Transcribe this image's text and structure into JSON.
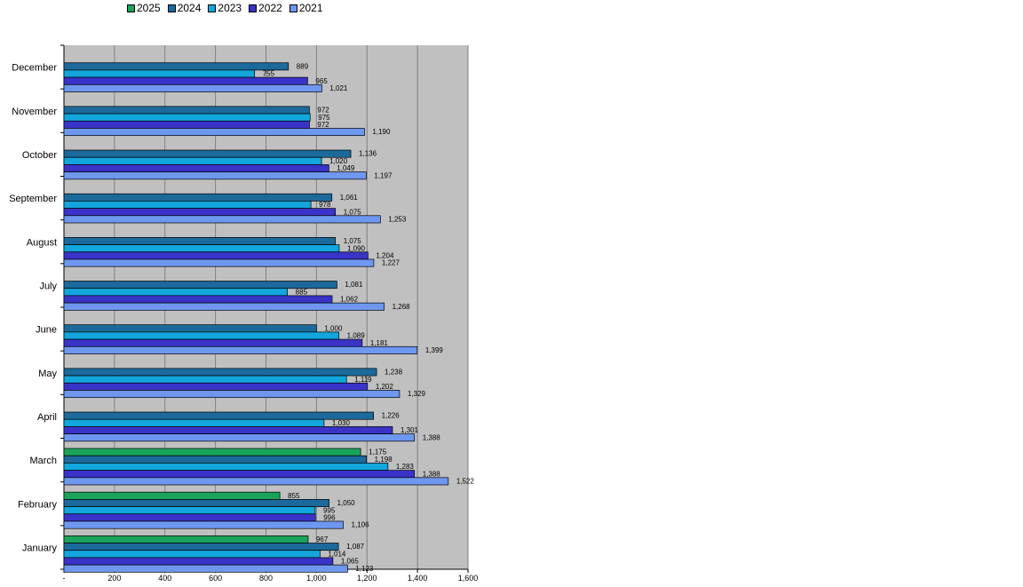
{
  "chart_data": {
    "type": "bar",
    "orientation": "horizontal",
    "categories": [
      "December",
      "November",
      "October",
      "September",
      "August",
      "July",
      "June",
      "May",
      "April",
      "March",
      "February",
      "January"
    ],
    "series": [
      {
        "name": "2024",
        "color": "#1b6a9b",
        "values": [
          889,
          972,
          1136,
          1061,
          1075,
          1081,
          1000,
          1238,
          1226,
          1198,
          1050,
          1087
        ],
        "labels": [
          "889",
          "972",
          "1,136",
          "1,061",
          "1,075",
          "1,081",
          "1,000",
          "1,238",
          "1,226",
          "1,198",
          "1,050",
          "1,087"
        ]
      },
      {
        "name": "2023",
        "color": "#12a6dd",
        "values": [
          755,
          975,
          1020,
          978,
          1090,
          885,
          1089,
          1119,
          1030,
          1283,
          995,
          1014
        ],
        "labels": [
          "755",
          "975",
          "1,020",
          "978",
          "1,090",
          "885",
          "1,089",
          "1,119",
          "1,030",
          "1,283",
          "995",
          "1,014"
        ]
      },
      {
        "name": "2022",
        "color": "#3a33c8",
        "values": [
          965,
          972,
          1049,
          1075,
          1204,
          1062,
          1181,
          1202,
          1301,
          1388,
          996,
          1065
        ],
        "labels": [
          "965",
          "972",
          "1,049",
          "1,075",
          "1,204",
          "1,062",
          "1,181",
          "1,202",
          "1,301",
          "1,388",
          "996",
          "1,065"
        ]
      },
      {
        "name": "2021",
        "color": "#6e97ef",
        "values": [
          1021,
          1190,
          1197,
          1253,
          1227,
          1268,
          1399,
          1329,
          1388,
          1522,
          1106,
          1123
        ],
        "labels": [
          "1,021",
          "1,190",
          "1,197",
          "1,253",
          "1,227",
          "1,268",
          "1,399",
          "1,329",
          "1,388",
          "1,522",
          "1,106",
          "1,123"
        ]
      },
      {
        "name": "2025",
        "color": "#1aa35a",
        "values": [
          null,
          null,
          null,
          null,
          null,
          null,
          null,
          null,
          null,
          1175,
          855,
          967
        ],
        "labels": [
          null,
          null,
          null,
          null,
          null,
          null,
          null,
          null,
          null,
          "1,175",
          "855",
          "967"
        ]
      }
    ],
    "legend": [
      {
        "name": "2025",
        "color": "#1aa35a"
      },
      {
        "name": "2024",
        "color": "#1b6a9b"
      },
      {
        "name": "2023",
        "color": "#12a6dd"
      },
      {
        "name": "2022",
        "color": "#3a33c8"
      },
      {
        "name": "2021",
        "color": "#6e97ef"
      }
    ],
    "legend_position": "top",
    "xlim": [
      0,
      1600
    ],
    "xticks": [
      0,
      200,
      400,
      600,
      800,
      1000,
      1200,
      1400,
      1600
    ],
    "xtick_labels": [
      "-",
      "200",
      "400",
      "600",
      "800",
      "1,000",
      "1,200",
      "1,400",
      "1,600"
    ],
    "grid": true,
    "plot_background": "#c0c0c0"
  }
}
